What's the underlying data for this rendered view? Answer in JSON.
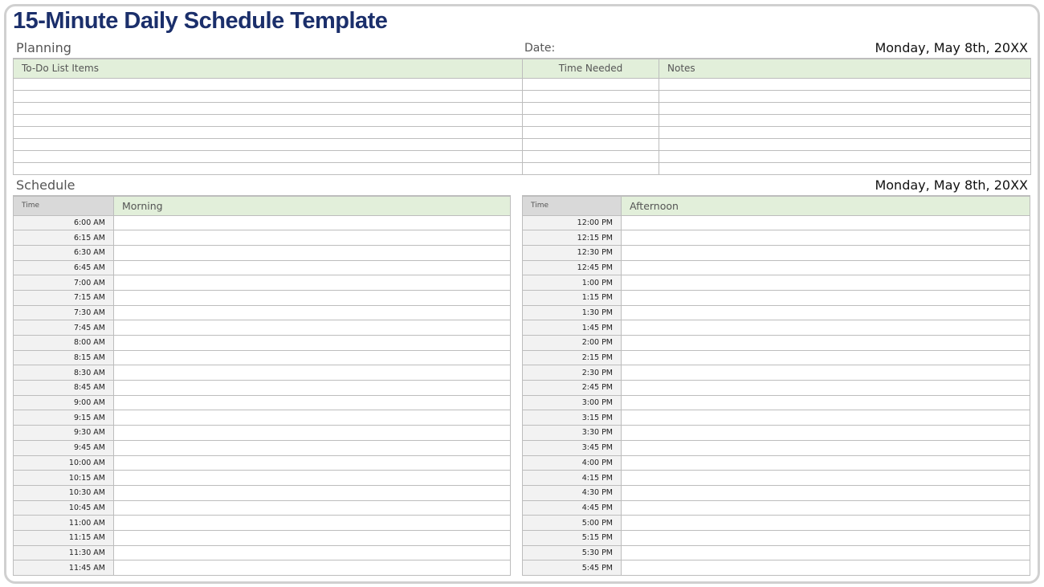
{
  "title": "15-Minute Daily Schedule Template",
  "planning": {
    "label": "Planning",
    "date_label": "Date:",
    "date_value": "Monday, May 8th, 20XX",
    "columns": [
      "To-Do List Items",
      "Time Needed",
      "Notes"
    ],
    "row_count": 8
  },
  "schedule": {
    "label": "Schedule",
    "date_value": "Monday, May 8th, 20XX",
    "morning": {
      "time_header": "Time",
      "header": "Morning",
      "times": [
        "6:00 AM",
        "6:15 AM",
        "6:30 AM",
        "6:45 AM",
        "7:00 AM",
        "7:15 AM",
        "7:30 AM",
        "7:45 AM",
        "8:00 AM",
        "8:15 AM",
        "8:30 AM",
        "8:45 AM",
        "9:00 AM",
        "9:15 AM",
        "9:30 AM",
        "9:45 AM",
        "10:00 AM",
        "10:15 AM",
        "10:30 AM",
        "10:45 AM",
        "11:00 AM",
        "11:15 AM",
        "11:30 AM",
        "11:45 AM"
      ]
    },
    "afternoon": {
      "time_header": "Time",
      "header": "Afternoon",
      "times": [
        "12:00 PM",
        "12:15 PM",
        "12:30 PM",
        "12:45 PM",
        "1:00 PM",
        "1:15 PM",
        "1:30 PM",
        "1:45 PM",
        "2:00 PM",
        "2:15 PM",
        "2:30 PM",
        "2:45 PM",
        "3:00 PM",
        "3:15 PM",
        "3:30 PM",
        "3:45 PM",
        "4:00 PM",
        "4:15 PM",
        "4:30 PM",
        "4:45 PM",
        "5:00 PM",
        "5:15 PM",
        "5:30 PM",
        "5:45 PM"
      ]
    }
  },
  "colors": {
    "title": "#1b2f6b",
    "header_green": "#e2efda",
    "time_header_gray": "#d9d9d9",
    "time_cell": "#f2f2f2"
  }
}
